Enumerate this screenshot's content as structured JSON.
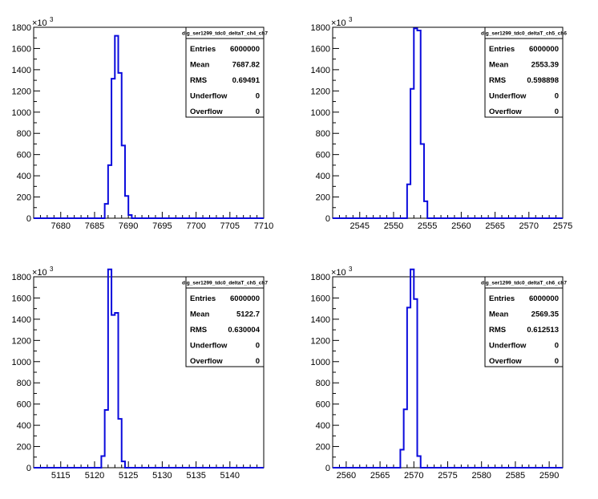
{
  "chart_data": [
    {
      "type": "histogram",
      "stats_title": "dig_ser1299_tdc0_deltaT_ch4_ch7",
      "stats": [
        {
          "label": "Entries",
          "value": "6000000"
        },
        {
          "label": "Mean",
          "value": "7687.82"
        },
        {
          "label": "RMS",
          "value": "0.69491"
        },
        {
          "label": "Underflow",
          "value": "0"
        },
        {
          "label": "Overflow",
          "value": "0"
        }
      ],
      "xlim": [
        7676,
        7710
      ],
      "ylim": [
        0,
        1800
      ],
      "y_exponent_label": "×10",
      "y_exponent_power": "3",
      "x_ticks": [
        7680,
        7685,
        7690,
        7695,
        7700,
        7705,
        7710
      ],
      "y_ticks": [
        0,
        200,
        400,
        600,
        800,
        1000,
        1200,
        1400,
        1600,
        1800
      ],
      "bin_width": 0.5,
      "bins": [
        {
          "x": 7686.0,
          "y": 0
        },
        {
          "x": 7686.5,
          "y": 135
        },
        {
          "x": 7687.0,
          "y": 500
        },
        {
          "x": 7687.5,
          "y": 1315
        },
        {
          "x": 7688.0,
          "y": 1720
        },
        {
          "x": 7688.5,
          "y": 1370
        },
        {
          "x": 7689.0,
          "y": 685
        },
        {
          "x": 7689.5,
          "y": 210
        },
        {
          "x": 7690.0,
          "y": 30
        },
        {
          "x": 7690.5,
          "y": 0
        }
      ]
    },
    {
      "type": "histogram",
      "stats_title": "dig_ser1299_tdc0_deltaT_ch5_ch6",
      "stats": [
        {
          "label": "Entries",
          "value": "6000000"
        },
        {
          "label": "Mean",
          "value": "2553.39"
        },
        {
          "label": "RMS",
          "value": "0.598898"
        },
        {
          "label": "Underflow",
          "value": "0"
        },
        {
          "label": "Overflow",
          "value": "0"
        }
      ],
      "xlim": [
        2541,
        2575
      ],
      "ylim": [
        0,
        1800
      ],
      "y_exponent_label": "×10",
      "y_exponent_power": "3",
      "x_ticks": [
        2545,
        2550,
        2555,
        2560,
        2565,
        2570,
        2575
      ],
      "y_ticks": [
        0,
        200,
        400,
        600,
        800,
        1000,
        1200,
        1400,
        1600,
        1800
      ],
      "bin_width": 0.5,
      "bins": [
        {
          "x": 2551.5,
          "y": 0
        },
        {
          "x": 2552.0,
          "y": 320
        },
        {
          "x": 2552.5,
          "y": 1220
        },
        {
          "x": 2553.0,
          "y": 1790
        },
        {
          "x": 2553.5,
          "y": 1770
        },
        {
          "x": 2554.0,
          "y": 700
        },
        {
          "x": 2554.5,
          "y": 160
        },
        {
          "x": 2555.0,
          "y": 0
        }
      ]
    },
    {
      "type": "histogram",
      "stats_title": "dig_ser1299_tdc0_deltaT_ch5_ch7",
      "stats": [
        {
          "label": "Entries",
          "value": "6000000"
        },
        {
          "label": "Mean",
          "value": "5122.7"
        },
        {
          "label": "RMS",
          "value": "0.630004"
        },
        {
          "label": "Underflow",
          "value": "0"
        },
        {
          "label": "Overflow",
          "value": "0"
        }
      ],
      "xlim": [
        5111,
        5145
      ],
      "ylim": [
        0,
        1800
      ],
      "y_exponent_label": "×10",
      "y_exponent_power": "3",
      "x_ticks": [
        5115,
        5120,
        5125,
        5130,
        5135,
        5140
      ],
      "y_ticks": [
        0,
        200,
        400,
        600,
        800,
        1000,
        1200,
        1400,
        1600,
        1800
      ],
      "bin_width": 0.5,
      "bins": [
        {
          "x": 5120.5,
          "y": 0
        },
        {
          "x": 5121.0,
          "y": 110
        },
        {
          "x": 5121.5,
          "y": 545
        },
        {
          "x": 5122.0,
          "y": 1870
        },
        {
          "x": 5122.5,
          "y": 1440
        },
        {
          "x": 5123.0,
          "y": 1460
        },
        {
          "x": 5123.5,
          "y": 460
        },
        {
          "x": 5124.0,
          "y": 60
        },
        {
          "x": 5124.5,
          "y": 0
        }
      ]
    },
    {
      "type": "histogram",
      "stats_title": "dig_ser1299_tdc0_deltaT_ch6_ch7",
      "stats": [
        {
          "label": "Entries",
          "value": "6000000"
        },
        {
          "label": "Mean",
          "value": "2569.35"
        },
        {
          "label": "RMS",
          "value": "0.612513"
        },
        {
          "label": "Underflow",
          "value": "0"
        },
        {
          "label": "Overflow",
          "value": "0"
        }
      ],
      "xlim": [
        2558,
        2592
      ],
      "ylim": [
        0,
        1800
      ],
      "y_exponent_label": "×10",
      "y_exponent_power": "3",
      "x_ticks": [
        2560,
        2565,
        2570,
        2575,
        2580,
        2585,
        2590
      ],
      "y_ticks": [
        0,
        200,
        400,
        600,
        800,
        1000,
        1200,
        1400,
        1600,
        1800
      ],
      "bin_width": 0.5,
      "bins": [
        {
          "x": 2567.5,
          "y": 0
        },
        {
          "x": 2568.0,
          "y": 170
        },
        {
          "x": 2568.5,
          "y": 550
        },
        {
          "x": 2569.0,
          "y": 1510
        },
        {
          "x": 2569.5,
          "y": 1870
        },
        {
          "x": 2570.0,
          "y": 1590
        },
        {
          "x": 2570.5,
          "y": 110
        },
        {
          "x": 2571.0,
          "y": 0
        }
      ]
    }
  ]
}
